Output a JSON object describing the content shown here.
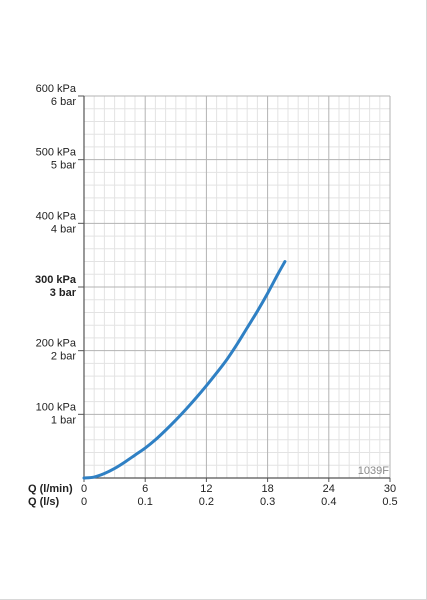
{
  "colors": {
    "curve": "#2f80c4",
    "grid_major": "#b3b3b3",
    "grid_minor": "#e3e3e3",
    "axis": "#555555"
  },
  "chart_data": {
    "type": "line",
    "chart_code": "1039F",
    "series": [
      {
        "x": [
          0,
          1,
          2,
          3,
          4,
          5,
          6,
          7,
          8,
          9,
          10,
          11,
          12,
          13,
          14,
          15,
          16,
          17,
          18,
          19,
          19.7
        ],
        "y": [
          0,
          1.5,
          7,
          15,
          25,
          36,
          47,
          60,
          75,
          91,
          108,
          126,
          145,
          165,
          186,
          210,
          236,
          262,
          290,
          320,
          340
        ]
      }
    ],
    "x_axis": {
      "label": "Q (l/min)",
      "ticks": [
        0,
        6,
        12,
        18,
        24,
        30
      ],
      "tick_labels": [
        "0",
        "6",
        "12",
        "18",
        "24",
        "30"
      ],
      "range": [
        0,
        30
      ]
    },
    "x2_axis": {
      "label": "Q (l/s)",
      "tick_labels": [
        "0",
        "0.1",
        "0.2",
        "0.3",
        "0.4",
        "0.5"
      ]
    },
    "y_axis": {
      "range": [
        0,
        600
      ],
      "ticks": [
        {
          "value": 100,
          "kpa": "100 kPa",
          "bar": "1 bar",
          "bold": false
        },
        {
          "value": 200,
          "kpa": "200 kPa",
          "bar": "2 bar",
          "bold": false
        },
        {
          "value": 300,
          "kpa": "300 kPa",
          "bar": "3 bar",
          "bold": true
        },
        {
          "value": 400,
          "kpa": "400 kPa",
          "bar": "4 bar",
          "bold": false
        },
        {
          "value": 500,
          "kpa": "500 kPa",
          "bar": "5 bar",
          "bold": false
        },
        {
          "value": 600,
          "kpa": "600 kPa",
          "bar": "6 bar",
          "bold": false
        }
      ]
    },
    "grid": true
  }
}
